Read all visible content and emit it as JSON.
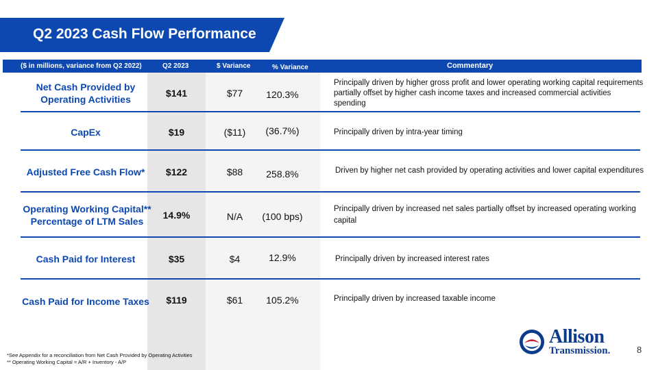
{
  "title": "Q2 2023 Cash Flow Performance",
  "header": {
    "units": "($ in millions, variance from Q2 2022)",
    "q2": "Q2 2023",
    "dollar_variance": "$ Variance",
    "percent_variance": "% Variance",
    "commentary": "Commentary"
  },
  "rows": [
    {
      "label": "Net Cash Provided by Operating Activities",
      "q2": "$141",
      "dollar_variance": "$77",
      "percent_variance": "120.3%",
      "commentary": "Principally driven by higher gross profit and lower operating working capital requirements partially offset by higher cash income taxes and increased commercial activities spending"
    },
    {
      "label": "CapEx",
      "q2": "$19",
      "dollar_variance": "($11)",
      "percent_variance": "(36.7%)",
      "commentary": "Principally driven by intra-year timing"
    },
    {
      "label": "Adjusted Free Cash Flow*",
      "q2": "$122",
      "dollar_variance": "$88",
      "percent_variance": "258.8%",
      "commentary": "Driven by higher net cash provided by operating activities and lower capital expenditures"
    },
    {
      "label": "Operating Working Capital** Percentage of LTM Sales",
      "q2": "14.9%",
      "dollar_variance": "N/A",
      "percent_variance": "(100 bps)",
      "commentary": "Principally driven by increased net sales partially offset by increased operating working capital"
    },
    {
      "label": "Cash Paid for Interest",
      "q2": "$35",
      "dollar_variance": "$4",
      "percent_variance": "12.9%",
      "commentary": "Principally driven by increased interest rates"
    },
    {
      "label": "Cash Paid for Income Taxes",
      "q2": "$119",
      "dollar_variance": "$61",
      "percent_variance": "105.2%",
      "commentary": "Principally driven by increased taxable income"
    }
  ],
  "footnotes": [
    "*See Appendix for a reconciliation from Net Cash Provided by Operating Activities",
    "** Operating Working Capital = A/R + Inventory - A/P"
  ],
  "logo": {
    "line1": "Allison",
    "line2": "Transmission."
  },
  "page_number": "8",
  "colors": {
    "brand_blue": "#0c48b0",
    "logo_blue": "#0c3a8c",
    "logo_red": "#c8202f"
  }
}
